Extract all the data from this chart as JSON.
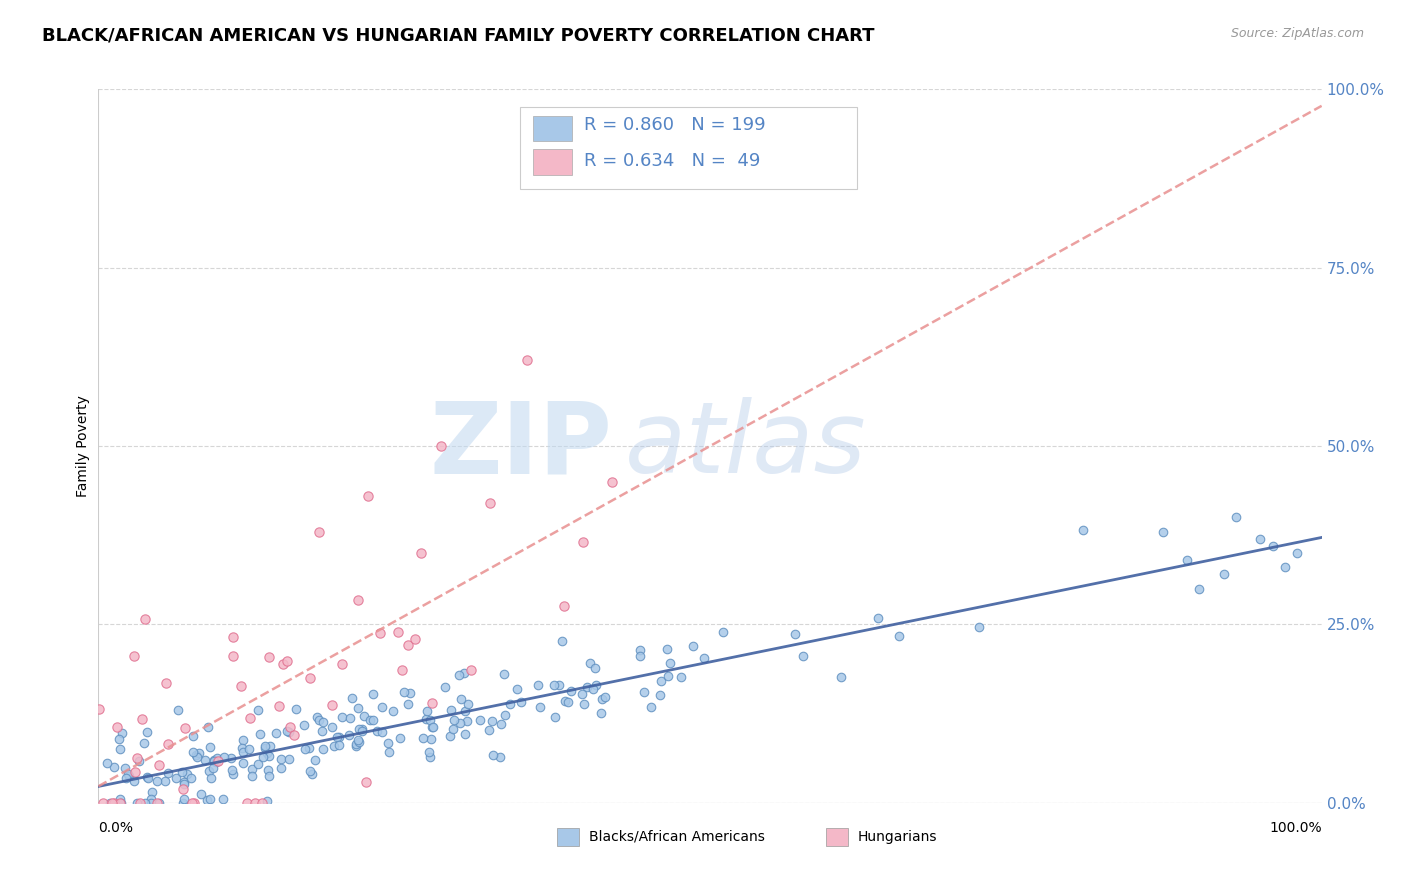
{
  "title": "BLACK/AFRICAN AMERICAN VS HUNGARIAN FAMILY POVERTY CORRELATION CHART",
  "source": "Source: ZipAtlas.com",
  "ylabel": "Family Poverty",
  "watermark_top": "ZIP",
  "watermark_bot": "atlas",
  "blue_R": 0.86,
  "blue_N": 199,
  "pink_R": 0.634,
  "pink_N": 49,
  "blue_color": "#a8c8e8",
  "pink_color": "#f4b8c8",
  "blue_edge": "#6090c0",
  "pink_edge": "#e07090",
  "blue_line_color": "#4060a0",
  "pink_line_color": "#e89090",
  "ytick_labels": [
    "0.0%",
    "25.0%",
    "50.0%",
    "75.0%",
    "100.0%"
  ],
  "ytick_values": [
    0.0,
    0.25,
    0.5,
    0.75,
    1.0
  ],
  "background_color": "#ffffff",
  "grid_color": "#cccccc",
  "title_fontsize": 13,
  "legend_fontsize": 13,
  "tick_color": "#5585c5",
  "legend_text_color": "#5585c5"
}
